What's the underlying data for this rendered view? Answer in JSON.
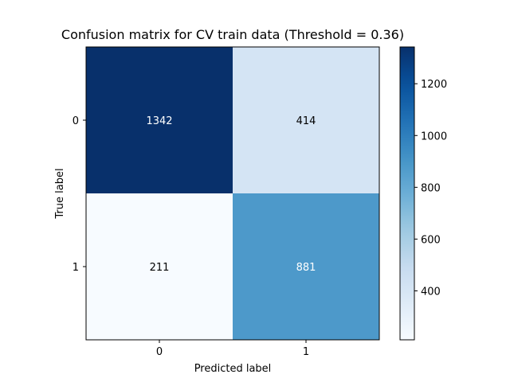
{
  "chart_data": {
    "type": "heatmap",
    "title": "Confusion matrix for CV train data (Threshold = 0.36)",
    "xlabel": "Predicted label",
    "ylabel": "True label",
    "x_categories": [
      "0",
      "1"
    ],
    "y_categories": [
      "0",
      "1"
    ],
    "values": [
      [
        1342,
        414
      ],
      [
        211,
        881
      ]
    ],
    "colormap": "Blues",
    "colorbar": {
      "range": [
        211,
        1342
      ],
      "ticks": [
        400,
        600,
        800,
        1000,
        1200
      ],
      "tick_labels": [
        "400",
        "600",
        "800",
        "1000",
        "1200"
      ]
    },
    "grid": false
  }
}
